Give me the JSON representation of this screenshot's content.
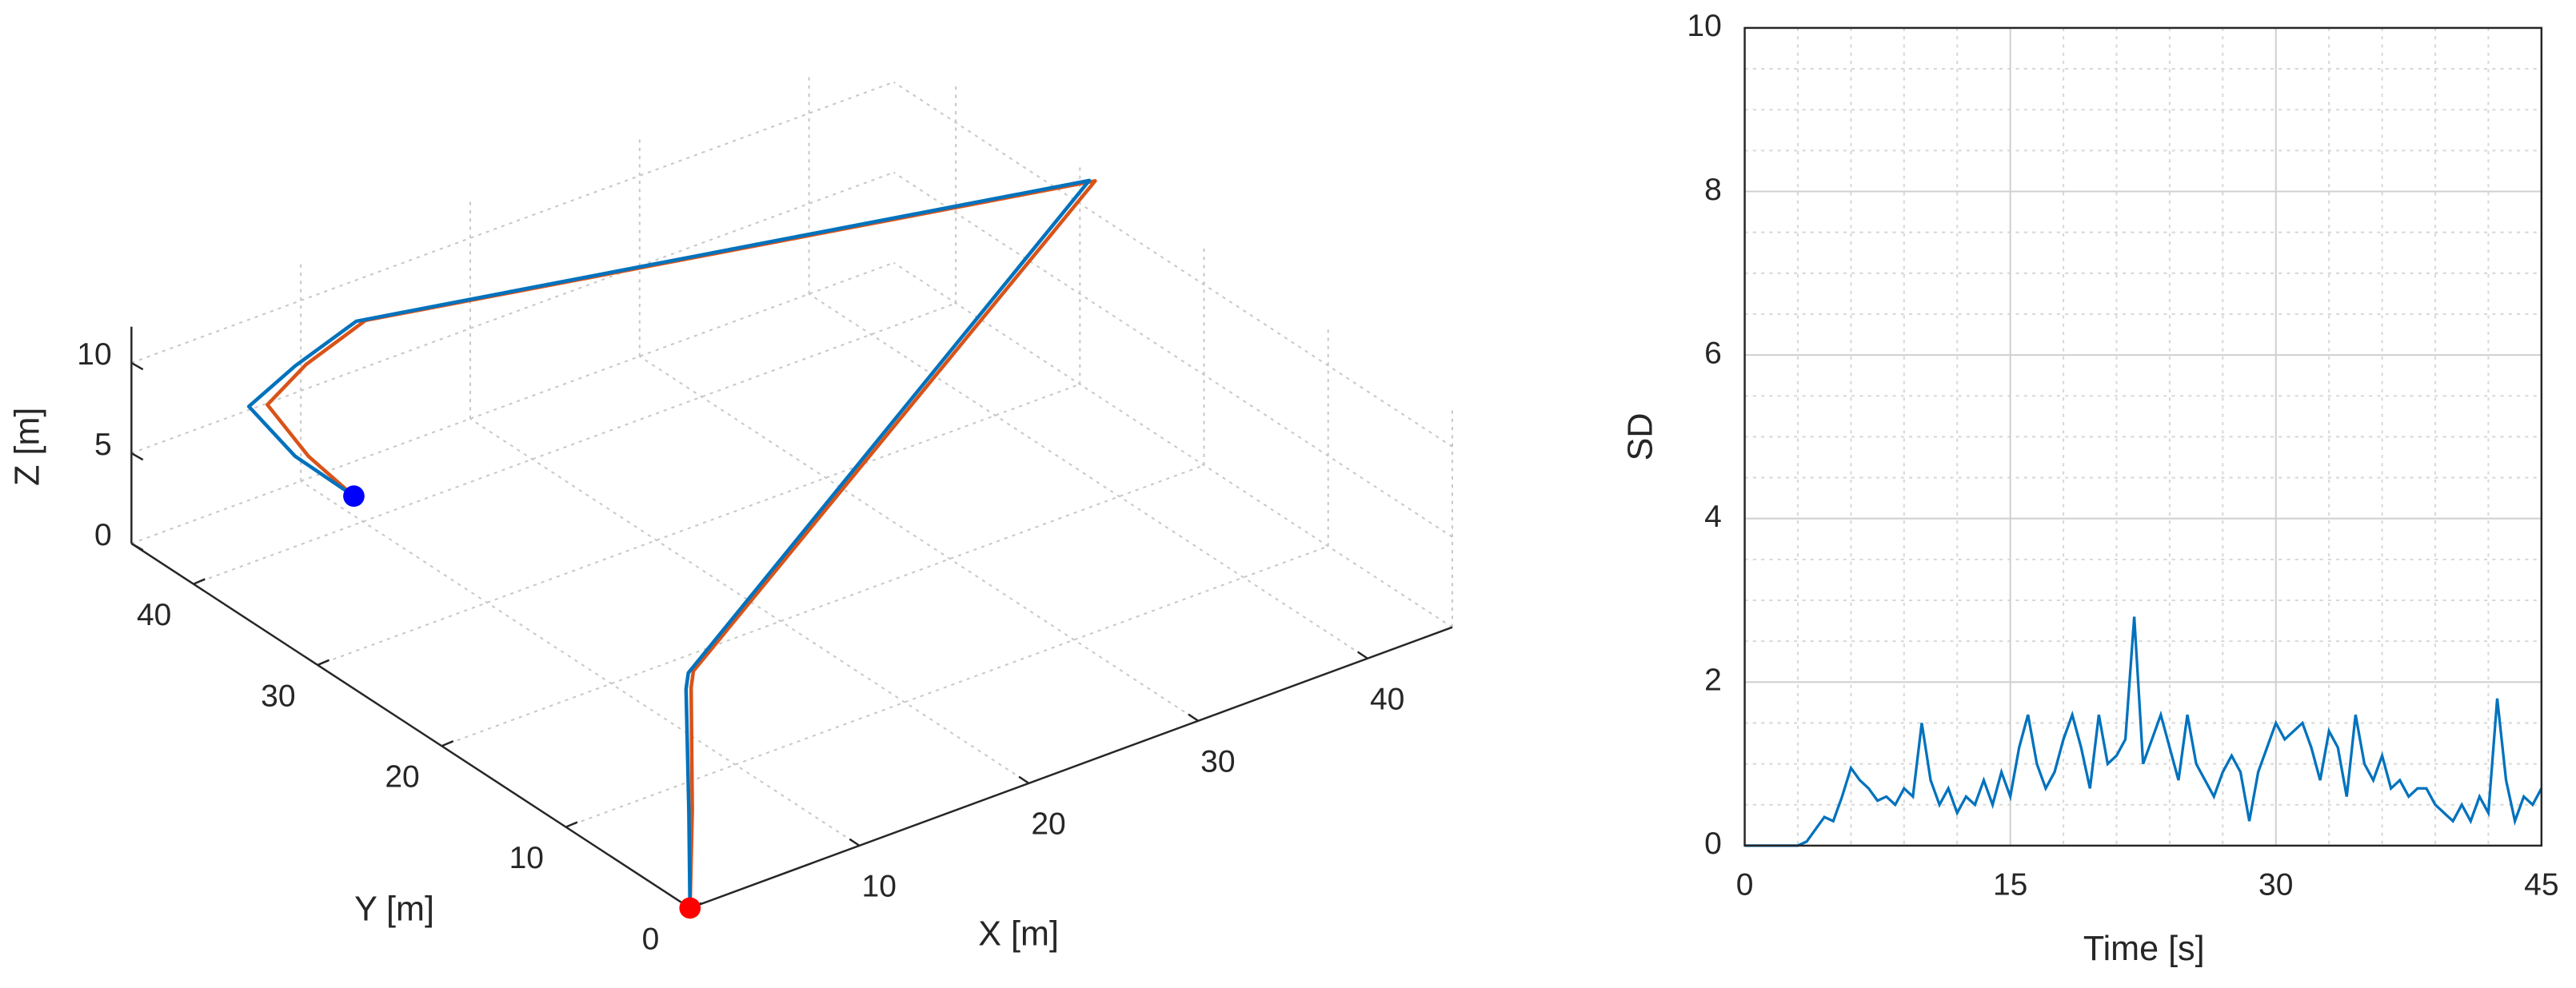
{
  "chart_data": [
    {
      "type": "line3d",
      "xlabel": "X [m]",
      "ylabel": "Y [m]",
      "zlabel": "Z [m]",
      "xlim": [
        0,
        45
      ],
      "ylim": [
        0,
        45
      ],
      "zlim": [
        0,
        12
      ],
      "xticks": [
        10,
        20,
        30,
        40
      ],
      "yticks": [
        0,
        10,
        20,
        30,
        40
      ],
      "zticks": [
        0,
        5,
        10
      ],
      "grid": true,
      "series": [
        {
          "color": "#d95319",
          "x": [
            0,
            0.5,
            0.8,
            1.3,
            44.8,
            9.2,
            6.5,
            4.8,
            6.5,
            8
          ],
          "y": [
            0,
            0.5,
            1,
            1.5,
            28.5,
            38.7,
            39.8,
            40.6,
            39.6,
            38
          ],
          "z": [
            0,
            5,
            11.5,
            12,
            12,
            12,
            10,
            8,
            5,
            3
          ]
        },
        {
          "color": "#0072bd",
          "x": [
            0,
            0.3,
            0.5,
            1,
            44.6,
            8.8,
            6,
            4,
            6,
            8
          ],
          "y": [
            0,
            0.5,
            1,
            1.5,
            28.7,
            38.9,
            40,
            41,
            40,
            38
          ],
          "z": [
            0,
            5,
            11.5,
            12,
            12,
            12,
            10,
            8,
            5,
            3
          ]
        }
      ],
      "start": {
        "x": 0,
        "y": 0,
        "z": 0,
        "color": "#ff0000"
      },
      "end": {
        "x": 8,
        "y": 38,
        "z": 3,
        "color": "#0000ff"
      }
    },
    {
      "type": "line",
      "xlabel": "Time [s]",
      "ylabel": "SD",
      "xlim": [
        0,
        45
      ],
      "ylim": [
        0,
        10
      ],
      "xticks": [
        0,
        15,
        30,
        45
      ],
      "yticks": [
        0,
        2,
        4,
        6,
        8,
        10
      ],
      "grid": true,
      "series": [
        {
          "color": "#0072bd",
          "x": [
            0,
            0.5,
            1,
            1.5,
            2,
            2.5,
            3,
            3.5,
            4,
            4.5,
            5,
            5.5,
            6,
            6.5,
            7,
            7.5,
            8,
            8.5,
            9,
            9.5,
            10,
            10.5,
            11,
            11.5,
            12,
            12.5,
            13,
            13.5,
            14,
            14.5,
            15,
            15.5,
            16,
            16.5,
            17,
            17.5,
            18,
            18.5,
            19,
            19.5,
            20,
            20.5,
            21,
            21.5,
            22,
            22.5,
            23,
            23.5,
            24,
            24.5,
            25,
            25.5,
            26,
            26.5,
            27,
            27.5,
            28,
            28.5,
            29,
            29.5,
            30,
            30.5,
            31,
            31.5,
            32,
            32.5,
            33,
            33.5,
            34,
            34.5,
            35,
            35.5,
            36,
            36.5,
            37,
            37.5,
            38,
            38.5,
            39,
            39.5,
            40,
            40.5,
            41,
            41.5,
            42,
            42.5,
            43,
            43.5,
            44,
            44.5,
            45
          ],
          "values": [
            0,
            0,
            0,
            0,
            0,
            0,
            0,
            0.05,
            0.2,
            0.35,
            0.3,
            0.6,
            0.95,
            0.8,
            0.7,
            0.55,
            0.6,
            0.5,
            0.7,
            0.6,
            1.5,
            0.8,
            0.5,
            0.7,
            0.4,
            0.6,
            0.5,
            0.8,
            0.5,
            0.9,
            0.6,
            1.2,
            1.6,
            1.0,
            0.7,
            0.9,
            1.3,
            1.6,
            1.2,
            0.7,
            1.6,
            1.0,
            1.1,
            1.3,
            2.8,
            1.0,
            1.3,
            1.6,
            1.2,
            0.8,
            1.6,
            1.0,
            0.8,
            0.6,
            0.9,
            1.1,
            0.9,
            0.3,
            0.9,
            1.2,
            1.5,
            1.3,
            1.4,
            1.5,
            1.2,
            0.8,
            1.4,
            1.2,
            0.6,
            1.6,
            1.0,
            0.8,
            1.1,
            0.7,
            0.8,
            0.6,
            0.7,
            0.7,
            0.5,
            0.4,
            0.3,
            0.5,
            0.3,
            0.6,
            0.4,
            1.8,
            0.8,
            0.3,
            0.6,
            0.5,
            0.7
          ]
        }
      ]
    }
  ]
}
